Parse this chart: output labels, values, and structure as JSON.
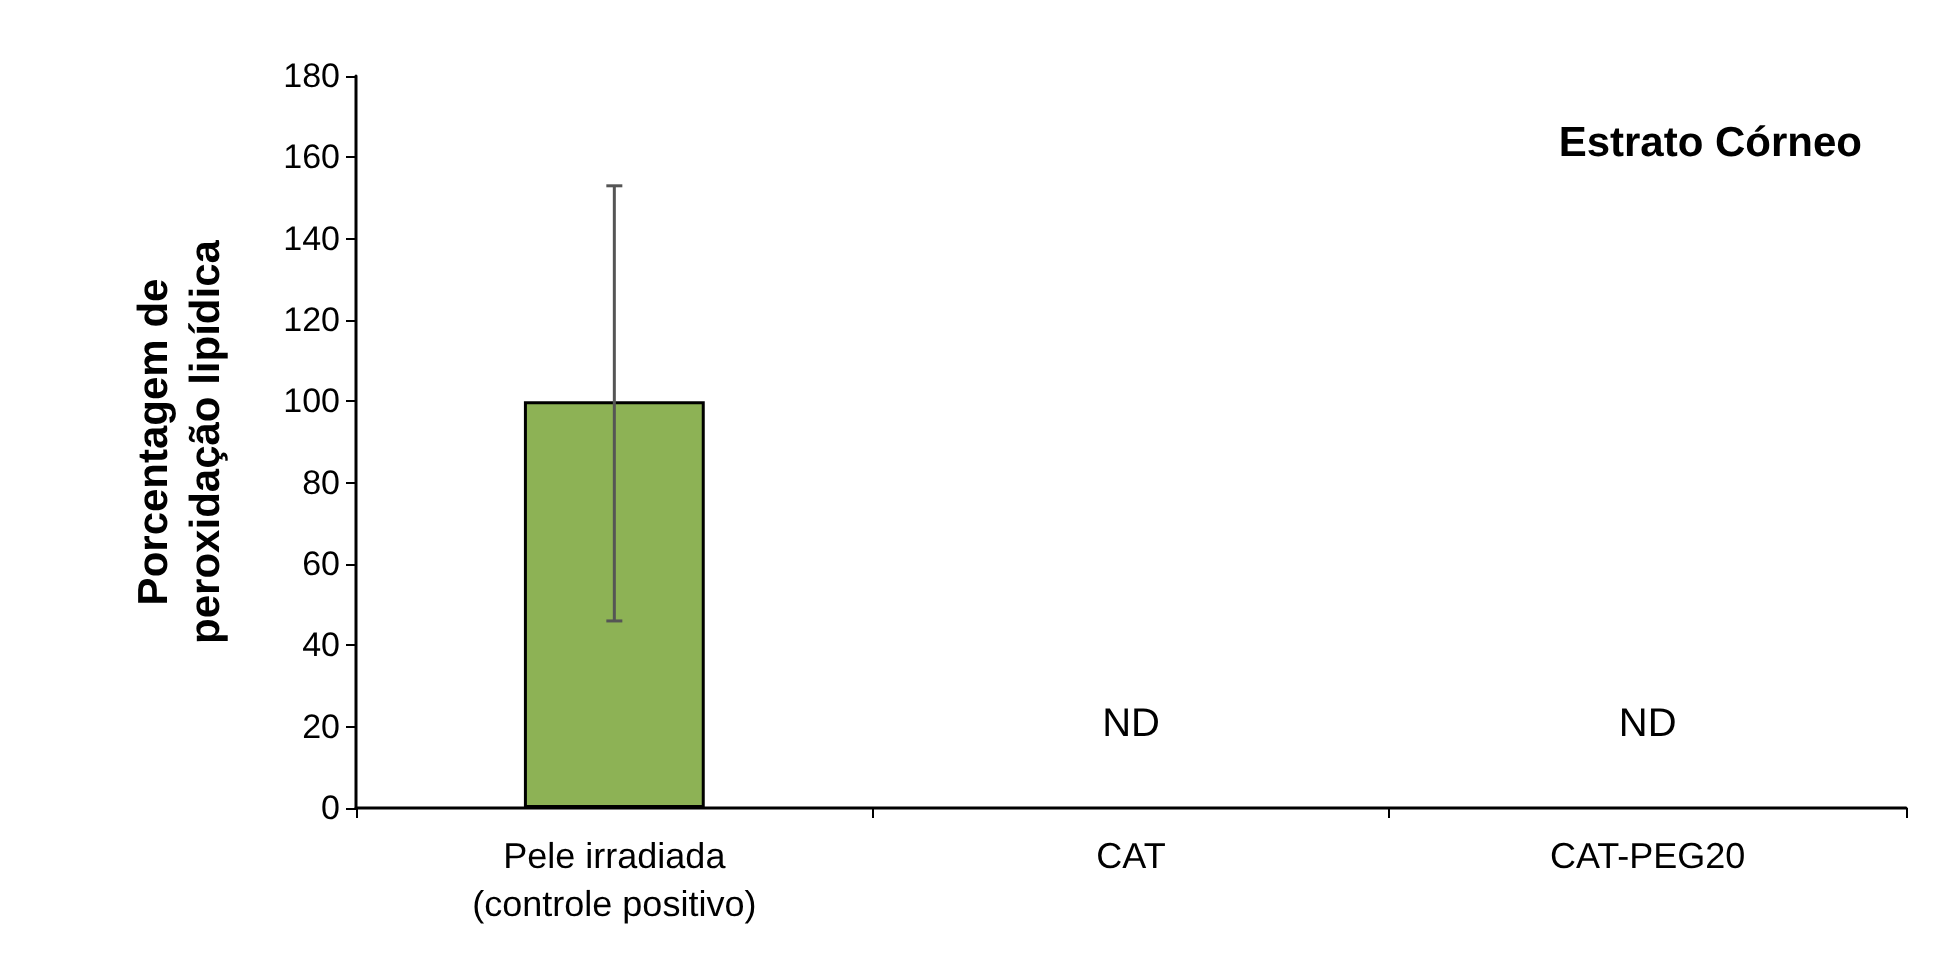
{
  "chart_data": {
    "type": "bar",
    "title": "Estrato Córneo",
    "ylabel": "Porcentagem de\nperoxidação lipídica",
    "categories": [
      "Pele irradiada\n(controle positivo)",
      "CAT",
      "CAT-PEG20"
    ],
    "values": [
      100,
      null,
      null
    ],
    "value_labels": [
      null,
      "ND",
      "ND"
    ],
    "errors": [
      [
        46,
        153
      ],
      null,
      null
    ],
    "color": "#8db255",
    "ylim": [
      0,
      180
    ],
    "yticks": [
      0,
      20,
      40,
      60,
      80,
      100,
      120,
      140,
      160,
      180
    ],
    "grid": false
  }
}
